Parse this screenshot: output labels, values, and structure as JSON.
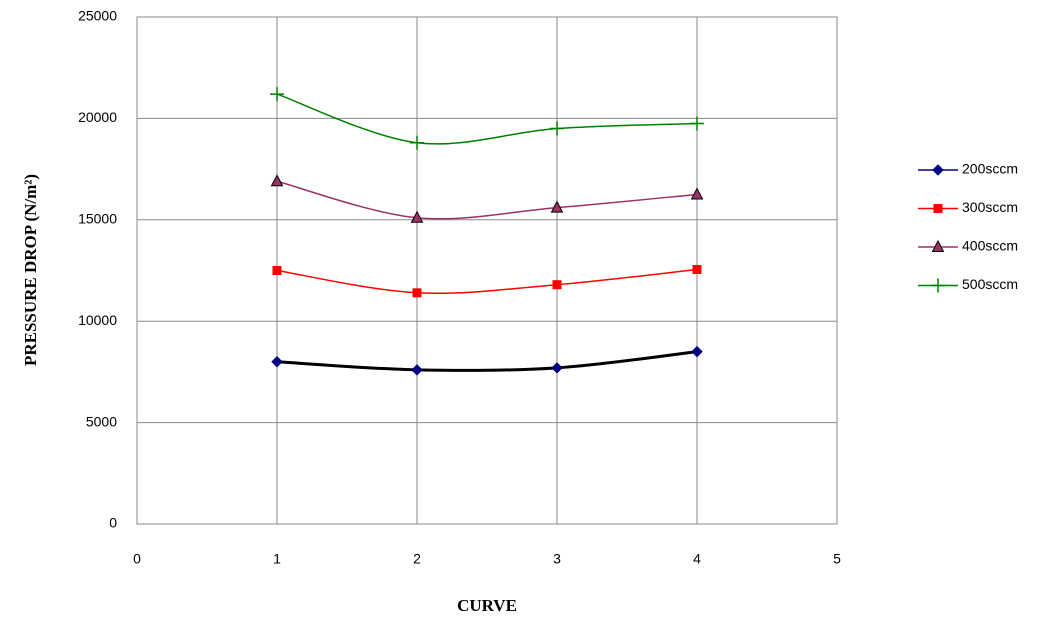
{
  "chart_data": {
    "type": "line",
    "x_label": "CURVE",
    "y_label": "PRESSURE DROP (N/m²)",
    "x": [
      1,
      2,
      3,
      4
    ],
    "series": [
      {
        "name": "200sccm",
        "color": "#000080",
        "line_color": "#000000",
        "line_width": 3,
        "marker": "diamond",
        "values": [
          8000,
          7600,
          7700,
          8500
        ]
      },
      {
        "name": "300sccm",
        "color": "#ff0000",
        "line_color": "#ff0000",
        "line_width": 1.5,
        "marker": "square",
        "values": [
          12500,
          11400,
          11800,
          12550
        ]
      },
      {
        "name": "400sccm",
        "color": "#993366",
        "line_color": "#993366",
        "line_width": 1.5,
        "marker": "triangle",
        "values": [
          16900,
          15100,
          15600,
          16250
        ]
      },
      {
        "name": "500sccm",
        "color": "#008000",
        "line_color": "#008000",
        "line_width": 1.5,
        "marker": "plus",
        "values": [
          21200,
          18800,
          19500,
          19750
        ]
      }
    ],
    "xlim": [
      0,
      5
    ],
    "xticks": [
      0,
      1,
      2,
      3,
      4,
      5
    ],
    "ylim": [
      0,
      25000
    ],
    "yticks": [
      0,
      5000,
      10000,
      15000,
      20000,
      25000
    ],
    "grid": true,
    "legend": "right"
  }
}
